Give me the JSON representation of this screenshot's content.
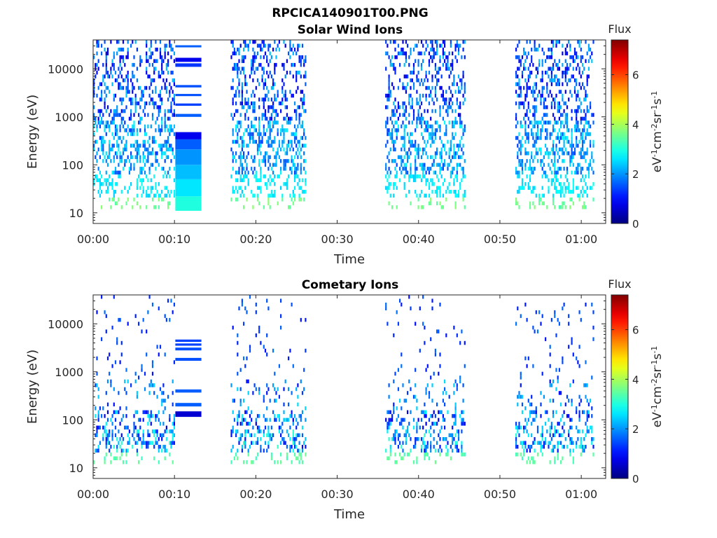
{
  "figure_title": "RPCICA140901T00.PNG",
  "colors": {
    "colormap": "jet",
    "background": "#ffffff",
    "axis": "#262626"
  },
  "chart_data": [
    {
      "type": "heatmap",
      "title": "Solar Wind Ions",
      "xlabel": "Time",
      "ylabel": "Energy (eV)",
      "x_ticks": [
        "00:00",
        "00:10",
        "00:20",
        "00:30",
        "00:40",
        "00:50",
        "01:00"
      ],
      "x_tick_minutes": [
        0,
        10,
        20,
        30,
        40,
        50,
        60
      ],
      "xlim_minutes": [
        0,
        63
      ],
      "y_ticks": [
        "10",
        "100",
        "1000",
        "10000"
      ],
      "y_tick_values": [
        10,
        100,
        1000,
        10000
      ],
      "ylim": [
        6,
        40000
      ],
      "y_scale": "log",
      "colorbar": {
        "title": "Flux",
        "label": "eV-1cm-2sr-1s-1",
        "label_parts": [
          {
            "text": "eV"
          },
          {
            "text": "-1",
            "sup": true
          },
          {
            "text": "cm"
          },
          {
            "text": "-2",
            "sup": true
          },
          {
            "text": "sr"
          },
          {
            "text": "-1",
            "sup": true
          },
          {
            "text": "s"
          },
          {
            "text": "-1",
            "sup": true
          }
        ],
        "ticks": [
          "0",
          "2",
          "4",
          "6"
        ],
        "tick_values": [
          0,
          2,
          4,
          6
        ],
        "range": [
          0,
          7.4
        ]
      },
      "data_intervals_minutes": [
        [
          0,
          9.9
        ],
        [
          10.1,
          13.3
        ],
        [
          16.9,
          26.1
        ],
        [
          35.9,
          45.6
        ],
        [
          51.9,
          61.4
        ]
      ],
      "steady_block": {
        "time_minutes": [
          10.1,
          13.3
        ],
        "rows": [
          {
            "energy_low": 11,
            "energy_high": 22,
            "flux": 3.0
          },
          {
            "energy_low": 22,
            "energy_high": 50,
            "flux": 2.6
          },
          {
            "energy_low": 50,
            "energy_high": 100,
            "flux": 2.3
          },
          {
            "energy_low": 100,
            "energy_high": 210,
            "flux": 2.0
          },
          {
            "energy_low": 210,
            "energy_high": 340,
            "flux": 1.6
          },
          {
            "energy_low": 340,
            "energy_high": 480,
            "flux": 0.8
          },
          {
            "energy_low": 1000,
            "energy_high": 1150,
            "flux": 1.6
          },
          {
            "energy_low": 1700,
            "energy_high": 1900,
            "flux": 1.4
          },
          {
            "energy_low": 2700,
            "energy_high": 3000,
            "flux": 1.5
          },
          {
            "energy_low": 4100,
            "energy_high": 4600,
            "flux": 1.5
          },
          {
            "energy_low": 11000,
            "energy_high": 13000,
            "flux": 1.3
          },
          {
            "energy_low": 14000,
            "energy_high": 17000,
            "flux": 0.8
          },
          {
            "energy_low": 28000,
            "energy_high": 31000,
            "flux": 1.6
          }
        ]
      }
    },
    {
      "type": "heatmap",
      "title": "Cometary Ions",
      "xlabel": "Time",
      "ylabel": "Energy (eV)",
      "x_ticks": [
        "00:00",
        "00:10",
        "00:20",
        "00:30",
        "00:40",
        "00:50",
        "01:00"
      ],
      "x_tick_minutes": [
        0,
        10,
        20,
        30,
        40,
        50,
        60
      ],
      "xlim_minutes": [
        0,
        63
      ],
      "y_ticks": [
        "10",
        "100",
        "1000",
        "10000"
      ],
      "y_tick_values": [
        10,
        100,
        1000,
        10000
      ],
      "ylim": [
        6,
        40000
      ],
      "y_scale": "log",
      "colorbar": {
        "title": "Flux",
        "label": "eV-1cm-2sr-1s-1",
        "label_parts": [
          {
            "text": "eV"
          },
          {
            "text": "-1",
            "sup": true
          },
          {
            "text": "cm"
          },
          {
            "text": "-2",
            "sup": true
          },
          {
            "text": "sr"
          },
          {
            "text": "-1",
            "sup": true
          },
          {
            "text": "s"
          },
          {
            "text": "-1",
            "sup": true
          }
        ],
        "ticks": [
          "0",
          "2",
          "4",
          "6"
        ],
        "tick_values": [
          0,
          2,
          4,
          6
        ],
        "range": [
          0,
          7.4
        ]
      },
      "data_intervals_minutes": [
        [
          0,
          9.9
        ],
        [
          10.1,
          13.3
        ],
        [
          16.9,
          26.1
        ],
        [
          35.9,
          45.6
        ],
        [
          51.9,
          61.4
        ]
      ],
      "steady_block": {
        "time_minutes": [
          10.1,
          13.3
        ],
        "rows": [
          {
            "energy_low": 115,
            "energy_high": 150,
            "flux": 0.6
          },
          {
            "energy_low": 190,
            "energy_high": 225,
            "flux": 1.6
          },
          {
            "energy_low": 370,
            "energy_high": 430,
            "flux": 1.6
          },
          {
            "energy_low": 1700,
            "energy_high": 1950,
            "flux": 1.5
          },
          {
            "energy_low": 2800,
            "energy_high": 3200,
            "flux": 1.5
          },
          {
            "energy_low": 3500,
            "energy_high": 3900,
            "flux": 1.4
          },
          {
            "energy_low": 4200,
            "energy_high": 4700,
            "flux": 1.4
          }
        ]
      }
    }
  ]
}
